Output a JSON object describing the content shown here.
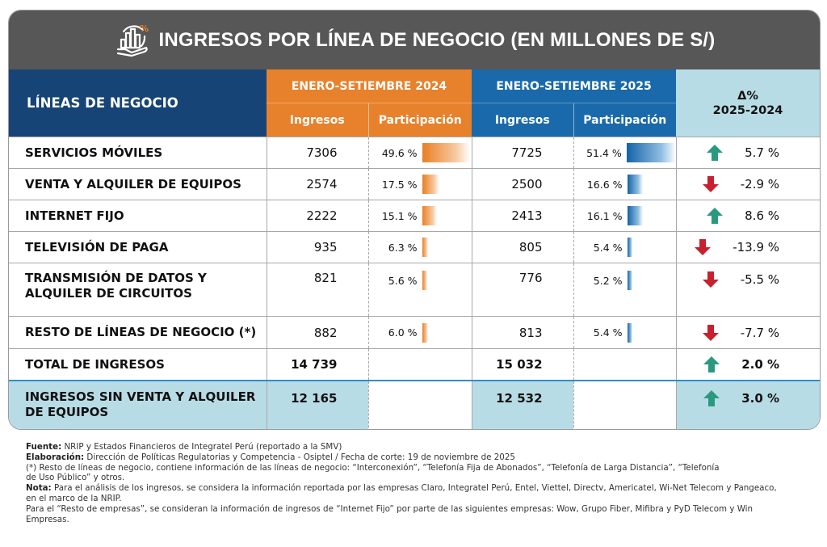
{
  "title": "INGRESOS POR LÍNEA DE NEGOCIO (EN MILLONES DE S/)",
  "title_icon": "hand-chart-percent-icon",
  "colors": {
    "title_bg": "#575757",
    "lines_header_bg": "#174477",
    "year2024_bg": "#e8812b",
    "year2025_bg": "#1a6aab",
    "delta_bg": "#b8dce6",
    "up_arrow": "#2a9a7f",
    "down_arrow": "#c8202e"
  },
  "header": {
    "lines_label": "LÍNEAS DE NEGOCIO",
    "period_2024": "ENERO-SETIEMBRE 2024",
    "period_2025": "ENERO-SETIEMBRE 2025",
    "ingresos": "Ingresos",
    "participacion": "Participación",
    "delta_symbol": "Δ%",
    "delta_range": "2025-2024"
  },
  "rows": [
    {
      "label": "SERVICIOS MÓVILES",
      "ing_2024": "7306",
      "part_2024": "49.6 %",
      "part_2024_value": 49.6,
      "ing_2025": "7725",
      "part_2025": "51.4 %",
      "part_2025_value": 51.4,
      "delta": "5.7 %",
      "trend": "up"
    },
    {
      "label": "VENTA Y ALQUILER DE EQUIPOS",
      "ing_2024": "2574",
      "part_2024": "17.5 %",
      "part_2024_value": 17.5,
      "ing_2025": "2500",
      "part_2025": "16.6 %",
      "part_2025_value": 16.6,
      "delta": "-2.9 %",
      "trend": "down"
    },
    {
      "label": "INTERNET FIJO",
      "ing_2024": "2222",
      "part_2024": "15.1 %",
      "part_2024_value": 15.1,
      "ing_2025": "2413",
      "part_2025": "16.1 %",
      "part_2025_value": 16.1,
      "delta": "8.6 %",
      "trend": "up"
    },
    {
      "label": "TELEVISIÓN DE PAGA",
      "ing_2024": "935",
      "part_2024": "6.3 %",
      "part_2024_value": 6.3,
      "ing_2025": "805",
      "part_2025": "5.4 %",
      "part_2025_value": 5.4,
      "delta": "-13.9 %",
      "trend": "down"
    },
    {
      "label": "TRANSMISIÓN DE DATOS Y ALQUILER DE CIRCUITOS",
      "ing_2024": "821",
      "part_2024": "5.6 %",
      "part_2024_value": 5.6,
      "ing_2025": "776",
      "part_2025": "5.2 %",
      "part_2025_value": 5.2,
      "delta": "-5.5 %",
      "trend": "down"
    },
    {
      "label": "RESTO DE LÍNEAS DE NEGOCIO (*)",
      "ing_2024": "882",
      "part_2024": "6.0 %",
      "part_2024_value": 6.0,
      "ing_2025": "813",
      "part_2025": "5.4 %",
      "part_2025_value": 5.4,
      "delta": "-7.7 %",
      "trend": "down"
    }
  ],
  "total": {
    "label": "TOTAL DE INGRESOS",
    "ing_2024": "14 739",
    "ing_2025": "15 032",
    "delta": "2.0 %",
    "trend": "up"
  },
  "sin_venta": {
    "label": "INGRESOS SIN VENTA Y ALQUILER DE EQUIPOS",
    "ing_2024": "12 165",
    "ing_2025": "12 532",
    "delta": "3.0 %",
    "trend": "up"
  },
  "notes": {
    "fuente_label": "Fuente:",
    "fuente_text": " NRIP y Estados Financieros de Integratel Perú (reportado a la SMV)",
    "elaboracion_label": "Elaboración:",
    "elaboracion_text": " Dirección de Políticas Regulatorias y Competencia - Osiptel / Fecha de corte: 19 de noviembre de 2025",
    "asterisk_text": "(*) Resto de líneas de negocio, contiene información de las líneas de negocio: “Interconexión”, “Telefonía Fija de Abonados”, “Telefonía de Larga Distancia”, “Telefonía de Uso Público” y otros.",
    "nota_label": "Nota:",
    "nota_text": " Para el análisis de los ingresos, se considera la información reportada por las empresas Claro, Integratel Perú, Entel, Viettel, Directv, Americatel, Wi-Net Telecom y Pangeaco, en el marco de la NRIP.",
    "resto_text": "Para el “Resto de empresas”, se consideran la información de ingresos de “Internet Fijo” por parte de las siguientes empresas: Wow, Grupo Fiber, Mifibra y PyD Telecom y Win Empresas."
  }
}
